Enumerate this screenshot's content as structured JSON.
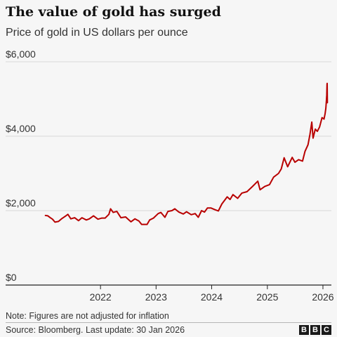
{
  "header": {
    "title": "The value of gold has surged",
    "subtitle": "Price of gold in US dollars per ounce"
  },
  "footer": {
    "note": "Note: Figures are not adjusted for inflation",
    "source": "Source: Bloomberg. Last update: 30 Jan 2026",
    "logo": [
      "B",
      "B",
      "C"
    ]
  },
  "colors": {
    "line": "#b80000",
    "grid": "#d8d8d8",
    "axis": "#222222"
  },
  "chart_data": {
    "type": "line",
    "title": "The value of gold has surged",
    "subtitle": "Price of gold in US dollars per ounce",
    "xlabel": "",
    "ylabel": "",
    "x_ticks": [
      "2022",
      "2023",
      "2024",
      "2025",
      "2026"
    ],
    "y_ticks": [
      {
        "value": 0,
        "label": "$0"
      },
      {
        "value": 2000,
        "label": "$2,000"
      },
      {
        "value": 4000,
        "label": "$4,000"
      },
      {
        "value": 6000,
        "label": "$6,000"
      }
    ],
    "xlim": [
      "2021-01-01",
      "2026-02-07"
    ],
    "ylim": [
      0,
      6000
    ],
    "grid": "horizontal",
    "legend": "none",
    "series": [
      {
        "points": [
          [
            "2021-01-04",
            1870
          ],
          [
            "2021-01-20",
            1860
          ],
          [
            "2021-02-05",
            1810
          ],
          [
            "2021-02-20",
            1770
          ],
          [
            "2021-03-08",
            1690
          ],
          [
            "2021-03-31",
            1710
          ],
          [
            "2021-04-20",
            1780
          ],
          [
            "2021-05-15",
            1850
          ],
          [
            "2021-06-01",
            1900
          ],
          [
            "2021-06-20",
            1780
          ],
          [
            "2021-07-15",
            1810
          ],
          [
            "2021-08-10",
            1730
          ],
          [
            "2021-09-01",
            1810
          ],
          [
            "2021-09-30",
            1750
          ],
          [
            "2021-10-20",
            1780
          ],
          [
            "2021-11-16",
            1860
          ],
          [
            "2021-12-15",
            1770
          ],
          [
            "2022-01-10",
            1800
          ],
          [
            "2022-01-31",
            1800
          ],
          [
            "2022-02-25",
            1900
          ],
          [
            "2022-03-08",
            2050
          ],
          [
            "2022-03-25",
            1950
          ],
          [
            "2022-04-18",
            1980
          ],
          [
            "2022-05-15",
            1810
          ],
          [
            "2022-06-15",
            1830
          ],
          [
            "2022-07-20",
            1700
          ],
          [
            "2022-08-15",
            1780
          ],
          [
            "2022-09-10",
            1720
          ],
          [
            "2022-09-28",
            1630
          ],
          [
            "2022-10-20",
            1630
          ],
          [
            "2022-11-03",
            1630
          ],
          [
            "2022-11-20",
            1750
          ],
          [
            "2022-12-15",
            1800
          ],
          [
            "2023-01-15",
            1920
          ],
          [
            "2023-02-02",
            1950
          ],
          [
            "2023-02-28",
            1820
          ],
          [
            "2023-03-20",
            1980
          ],
          [
            "2023-04-15",
            2000
          ],
          [
            "2023-05-04",
            2050
          ],
          [
            "2023-05-31",
            1960
          ],
          [
            "2023-06-29",
            1910
          ],
          [
            "2023-07-20",
            1970
          ],
          [
            "2023-08-20",
            1890
          ],
          [
            "2023-09-15",
            1920
          ],
          [
            "2023-10-05",
            1820
          ],
          [
            "2023-10-27",
            2000
          ],
          [
            "2023-11-15",
            1960
          ],
          [
            "2023-12-04",
            2070
          ],
          [
            "2023-12-28",
            2070
          ],
          [
            "2024-01-20",
            2030
          ],
          [
            "2024-02-14",
            1990
          ],
          [
            "2024-03-08",
            2180
          ],
          [
            "2024-04-12",
            2370
          ],
          [
            "2024-05-01",
            2300
          ],
          [
            "2024-05-20",
            2430
          ],
          [
            "2024-06-20",
            2330
          ],
          [
            "2024-07-17",
            2470
          ],
          [
            "2024-08-20",
            2510
          ],
          [
            "2024-09-25",
            2650
          ],
          [
            "2024-10-30",
            2790
          ],
          [
            "2024-11-14",
            2560
          ],
          [
            "2024-12-15",
            2650
          ],
          [
            "2025-01-15",
            2700
          ],
          [
            "2025-02-11",
            2900
          ],
          [
            "2025-03-15",
            3000
          ],
          [
            "2025-04-02",
            3120
          ],
          [
            "2025-04-21",
            3420
          ],
          [
            "2025-05-14",
            3180
          ],
          [
            "2025-06-13",
            3430
          ],
          [
            "2025-07-01",
            3300
          ],
          [
            "2025-07-25",
            3370
          ],
          [
            "2025-08-20",
            3330
          ],
          [
            "2025-09-05",
            3590
          ],
          [
            "2025-09-25",
            3770
          ],
          [
            "2025-10-08",
            4050
          ],
          [
            "2025-10-20",
            4380
          ],
          [
            "2025-10-28",
            3950
          ],
          [
            "2025-11-12",
            4190
          ],
          [
            "2025-11-25",
            4130
          ],
          [
            "2025-12-10",
            4250
          ],
          [
            "2025-12-26",
            4500
          ],
          [
            "2026-01-08",
            4460
          ],
          [
            "2026-01-15",
            4600
          ],
          [
            "2026-01-20",
            4750
          ],
          [
            "2026-01-24",
            4980
          ],
          [
            "2026-01-26",
            5100
          ],
          [
            "2026-01-28",
            5400
          ],
          [
            "2026-01-29",
            5420
          ],
          [
            "2026-01-30",
            4900
          ]
        ]
      }
    ]
  }
}
